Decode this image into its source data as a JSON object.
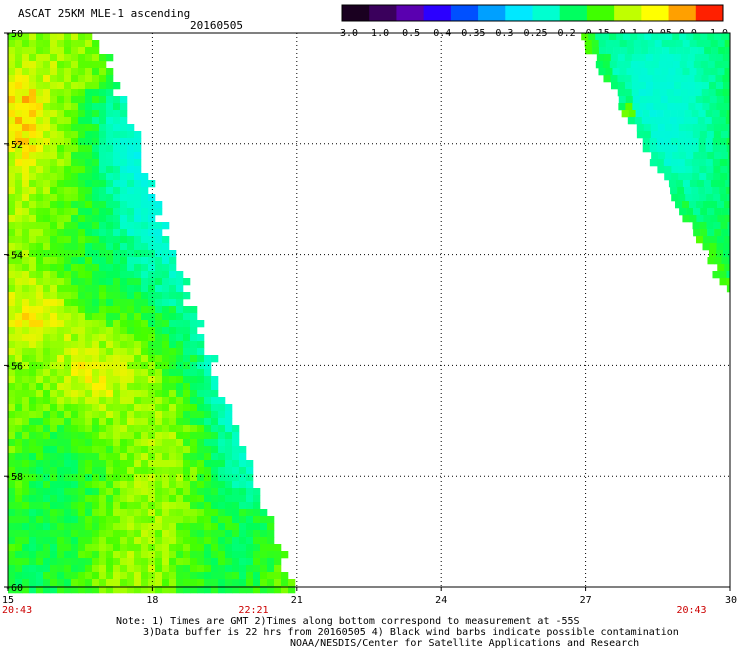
{
  "header": {
    "title": "ASCAT 25KM MLE-1 ascending",
    "date": "20160505"
  },
  "colorbar": {
    "labels": [
      "-3.0",
      "-1.0",
      "-0.5",
      "-0.4",
      "-0.35",
      "-0.3",
      "-0.25",
      "-0.2",
      "-0.15",
      "-0.1",
      "-0.05",
      "0.0",
      "1.0"
    ],
    "colors": [
      "#1a0020",
      "#3a005c",
      "#5a00b0",
      "#2b00ff",
      "#0050ff",
      "#00a0ff",
      "#00e8ff",
      "#00ffd0",
      "#00ff60",
      "#40ff00",
      "#c0ff00",
      "#ffff00",
      "#ffa000",
      "#ff2000"
    ]
  },
  "map": {
    "lat_labels": [
      "-50",
      "-52",
      "-54",
      "-56",
      "-58",
      "-60"
    ],
    "lon_labels": [
      "15",
      "18",
      "21",
      "24",
      "27",
      "30"
    ],
    "time_labels": [
      {
        "text": "20:43",
        "lon": 15
      },
      {
        "text": "22:21",
        "lon": 20.1
      },
      {
        "text": "20:43",
        "lon": 29.2
      }
    ],
    "lon_range": [
      15,
      30
    ],
    "lat_range": [
      -50,
      -60
    ]
  },
  "notes": {
    "line1": "Note: 1) Times are GMT 2)Times along bottom correspond to measurement at -55S",
    "line2": "3)Data buffer is 22 hrs from 20160505 4) Black wind barbs indicate possible contamination",
    "line3": "NOAA/NESDIS/Center for Satellite Applications and Research"
  }
}
